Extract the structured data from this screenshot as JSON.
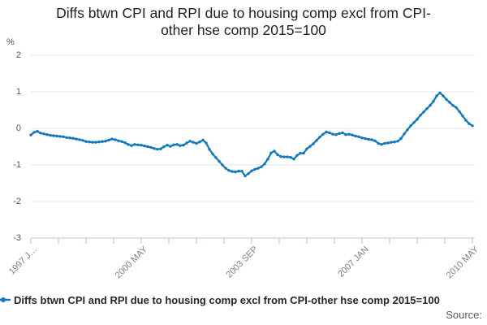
{
  "title": {
    "line1": "Diffs btwn CPI and RPI due to housing comp excl from CPI-",
    "line2": "other hse comp 2015=100"
  },
  "y_axis": {
    "unit_label": "%",
    "ticks": [
      2,
      1,
      0,
      -1,
      -2,
      -3
    ]
  },
  "x_axis": {
    "tick_labels": [
      "1997 J…",
      "2000 MAY",
      "2003 SEP",
      "2007 JAN",
      "2010 MAY"
    ]
  },
  "legend": {
    "label": "Diffs btwn CPI and RPI due to housing comp excl from CPI-other hse comp 2015=100"
  },
  "source_label": "Source:",
  "colors": {
    "line": "#1178bd",
    "grid": "#e4e4e4",
    "axis": "#b3c6d9"
  },
  "chart_data": {
    "type": "line",
    "title": "Diffs btwn CPI and RPI due to housing comp excl from CPI-other hse comp 2015=100",
    "ylabel": "%",
    "ylim": [
      -3,
      2
    ],
    "grid": "horizontal",
    "legend_position": "bottom",
    "x_start": "1997 JAN",
    "x_end": "2010 MAY",
    "x_tick_labels": [
      "1997 J…",
      "2000 MAY",
      "2003 SEP",
      "2007 JAN",
      "2010 MAY"
    ],
    "series": [
      {
        "name": "Diffs btwn CPI and RPI due to housing comp excl from CPI-other hse comp 2015=100",
        "values": [
          -0.18,
          -0.11,
          -0.08,
          -0.13,
          -0.15,
          -0.17,
          -0.19,
          -0.2,
          -0.21,
          -0.22,
          -0.23,
          -0.25,
          -0.26,
          -0.27,
          -0.29,
          -0.31,
          -0.33,
          -0.36,
          -0.37,
          -0.38,
          -0.38,
          -0.37,
          -0.36,
          -0.35,
          -0.32,
          -0.29,
          -0.31,
          -0.34,
          -0.36,
          -0.39,
          -0.44,
          -0.47,
          -0.44,
          -0.45,
          -0.46,
          -0.48,
          -0.5,
          -0.52,
          -0.55,
          -0.57,
          -0.56,
          -0.5,
          -0.46,
          -0.49,
          -0.45,
          -0.44,
          -0.47,
          -0.46,
          -0.4,
          -0.35,
          -0.38,
          -0.41,
          -0.37,
          -0.32,
          -0.4,
          -0.57,
          -0.7,
          -0.8,
          -0.9,
          -1.0,
          -1.09,
          -1.15,
          -1.18,
          -1.19,
          -1.17,
          -1.17,
          -1.3,
          -1.24,
          -1.16,
          -1.12,
          -1.09,
          -1.05,
          -0.97,
          -0.84,
          -0.67,
          -0.62,
          -0.72,
          -0.77,
          -0.78,
          -0.78,
          -0.79,
          -0.84,
          -0.74,
          -0.68,
          -0.68,
          -0.56,
          -0.49,
          -0.42,
          -0.33,
          -0.24,
          -0.16,
          -0.1,
          -0.12,
          -0.16,
          -0.17,
          -0.14,
          -0.12,
          -0.17,
          -0.16,
          -0.18,
          -0.21,
          -0.23,
          -0.26,
          -0.28,
          -0.3,
          -0.31,
          -0.34,
          -0.41,
          -0.44,
          -0.41,
          -0.4,
          -0.38,
          -0.37,
          -0.35,
          -0.28,
          -0.15,
          -0.04,
          0.07,
          0.16,
          0.25,
          0.36,
          0.45,
          0.54,
          0.63,
          0.74,
          0.89,
          0.97,
          0.89,
          0.79,
          0.71,
          0.63,
          0.57,
          0.46,
          0.34,
          0.22,
          0.13,
          0.07
        ]
      }
    ]
  }
}
